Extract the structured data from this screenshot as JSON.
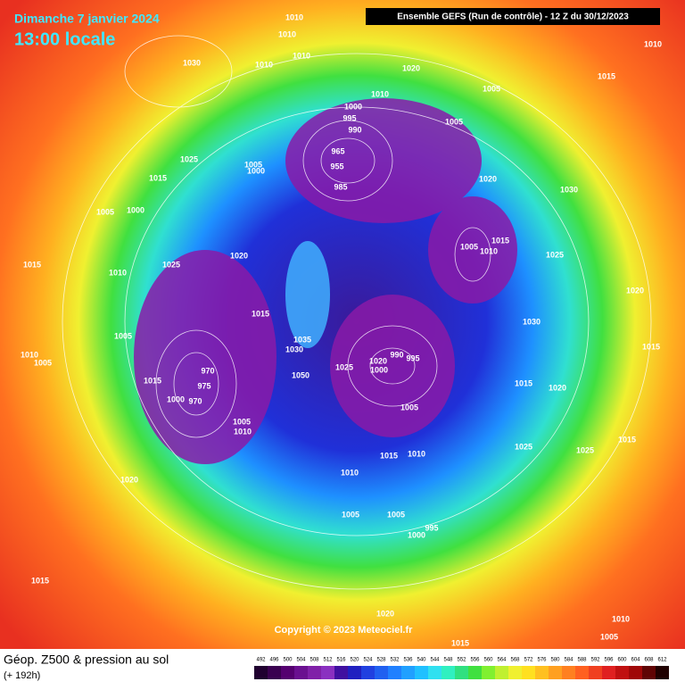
{
  "header": {
    "date": "Dimanche 7 janvier 2024",
    "time": "13:00 locale",
    "run": "Ensemble GEFS  (Run de contrôle)  -  12 Z du 30/12/2023"
  },
  "isobars": [
    1010,
    1010,
    1010,
    1010,
    1030,
    1020,
    1005,
    1015,
    1010,
    1000,
    1010,
    995,
    990,
    1005,
    965,
    955,
    985,
    1025,
    1005,
    1000,
    1015,
    1020,
    1030,
    1005,
    1000,
    1005,
    1015,
    1010,
    1025,
    1020,
    1015,
    1025,
    1010,
    1020,
    1015,
    1030,
    1005,
    1035,
    1030,
    1015,
    1010,
    1005,
    1025,
    1020,
    990,
    995,
    1000,
    970,
    975,
    1015,
    1000,
    970,
    1050,
    1015,
    1020,
    1005,
    1005,
    1010,
    1025,
    1015,
    1010,
    1025,
    1015,
    1010,
    1020,
    1005,
    1005,
    995,
    1000,
    1015,
    1020,
    1010,
    1005,
    1015
  ],
  "copyright": "Copyright © 2023 Meteociel.fr",
  "footer": {
    "title": "Géop. Z500 & pression au sol",
    "subtitle": "(+ 192h)"
  },
  "colorbar": [
    492,
    496,
    500,
    504,
    508,
    512,
    516,
    520,
    524,
    528,
    532,
    536,
    540,
    544,
    548,
    552,
    556,
    560,
    564,
    568,
    572,
    576,
    580,
    584,
    588,
    592,
    596,
    600,
    604,
    608,
    612
  ]
}
